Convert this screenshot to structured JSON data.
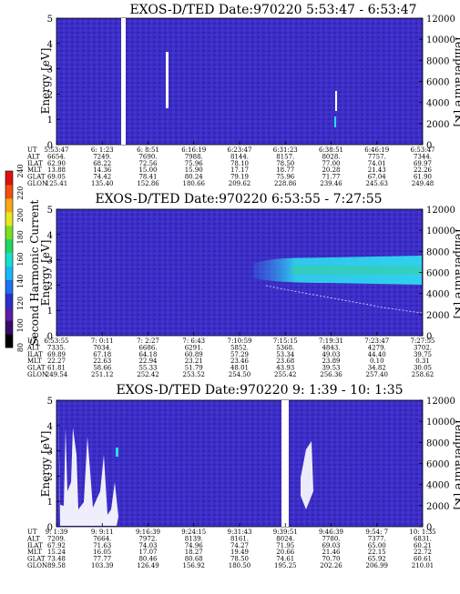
{
  "colors": {
    "background": "#3a2fc8",
    "band_cyan": "#2fd8f0",
    "band_green": "#3ad08a",
    "band_blue": "#2f8ff0",
    "white_gap": "#ffffff",
    "trace": "#c8c0ff"
  },
  "colorbar": {
    "label": "Second Harmonic Current",
    "ticks": [
      "240",
      "220",
      "200",
      "180",
      "160",
      "140",
      "120",
      "100",
      "80"
    ],
    "colors": [
      "#000000",
      "#3a0a6a",
      "#5a1fa8",
      "#2a2fd0",
      "#1f6ff0",
      "#18b8f8",
      "#18e0d0",
      "#20d860",
      "#7ae020",
      "#e8e820",
      "#f8a818",
      "#f05010",
      "#e01010"
    ]
  },
  "chart_data": [
    {
      "type": "heatmap",
      "title": "EXOS-D/TED   Date:970220   5:53:47 - 6:53:47",
      "ylabel": "Energy [eV]",
      "y2label": "Temperature [K]",
      "ylim": [
        0,
        5
      ],
      "y2lim": [
        0,
        12000
      ],
      "yticks": [
        "0",
        "1",
        "2",
        "3",
        "4",
        "5"
      ],
      "y2ticks": [
        "0",
        "2000",
        "4000",
        "6000",
        "8000",
        "10000",
        "12000"
      ],
      "table": {
        "row_labels": [
          "UT",
          "ALT",
          "ILAT",
          "MLT",
          "GLAT",
          "GLON"
        ],
        "columns": [
          [
            "5:53:47",
            "6654.",
            "62.90",
            "13.88",
            "69.05",
            "125.41"
          ],
          [
            "6: 1:23",
            "7249.",
            "68.22",
            "14.36",
            "74.42",
            "135.40"
          ],
          [
            "6: 8:51",
            "7690.",
            "72.56",
            "15.00",
            "78.41",
            "152.86"
          ],
          [
            "6:16:19",
            "7988.",
            "75.96",
            "15.90",
            "80.24",
            "180.66"
          ],
          [
            "6:23:47",
            "8144.",
            "78.10",
            "17.17",
            "79.19",
            "209.62"
          ],
          [
            "6:31:23",
            "8157.",
            "78.50",
            "18.77",
            "75.96",
            "228.86"
          ],
          [
            "6:38:51",
            "8028.",
            "77.00",
            "20.28",
            "71.77",
            "239.46"
          ],
          [
            "6:46:19",
            "7757.",
            "74.01",
            "21.43",
            "67.04",
            "245.63"
          ],
          [
            "6:53:47",
            "7344.",
            "69.97",
            "22.26",
            "61.90",
            "249.48"
          ]
        ]
      }
    },
    {
      "type": "heatmap",
      "title": "EXOS-D/TED   Date:970220   6:53:55 - 7:27:55",
      "ylabel": "Energy [eV]",
      "y2label": "Temperature [K]",
      "ylim": [
        0,
        5
      ],
      "y2lim": [
        0,
        12000
      ],
      "yticks": [
        "0",
        "1",
        "2",
        "3",
        "4",
        "5"
      ],
      "y2ticks": [
        "0",
        "2000",
        "4000",
        "6000",
        "8000",
        "10000",
        "12000"
      ],
      "table": {
        "row_labels": [
          "UT",
          "ALT",
          "ILAT",
          "MLT",
          "GLAT",
          "GLON"
        ],
        "columns": [
          [
            "6:53:55",
            "7335.",
            "69.89",
            "22.27",
            "61.81",
            "249.54"
          ],
          [
            "7: 0:11",
            "7034.",
            "67.18",
            "22.63",
            "58.66",
            "251.12"
          ],
          [
            "7: 2:27",
            "6686.",
            "64.18",
            "22.94",
            "55.33",
            "252.42"
          ],
          [
            "7: 6:43",
            "6291.",
            "60.89",
            "23.21",
            "51.79",
            "253.52"
          ],
          [
            "7:10:59",
            "5852.",
            "57.29",
            "23.46",
            "48.01",
            "254.50"
          ],
          [
            "7:15:15",
            "5368.",
            "53.34",
            "23.68",
            "43.93",
            "255.42"
          ],
          [
            "7:19:31",
            "4843.",
            "49.03",
            "23.89",
            "39.53",
            "256.36"
          ],
          [
            "7:23:47",
            "4279.",
            "44.40",
            "0.10",
            "34.82",
            "257.40"
          ],
          [
            "7:27:55",
            "3702.",
            "39.75",
            "0.31",
            "30.05",
            "258.62"
          ]
        ]
      }
    },
    {
      "type": "heatmap",
      "title": "EXOS-D/TED   Date:970220   9: 1:39 - 10: 1:35",
      "ylabel": "Energy [eV]",
      "y2label": "Temperature [K]",
      "ylim": [
        0,
        5
      ],
      "y2lim": [
        0,
        12000
      ],
      "yticks": [
        "0",
        "1",
        "2",
        "3",
        "4",
        "5"
      ],
      "y2ticks": [
        "0",
        "2000",
        "4000",
        "6000",
        "8000",
        "10000",
        "12000"
      ],
      "table": {
        "row_labels": [
          "UT",
          "ALT",
          "ILAT",
          "MLT",
          "GLAT",
          "GLON"
        ],
        "columns": [
          [
            "9: 1:39",
            "7209.",
            "67.92",
            "15.24",
            "73.48",
            "89.58"
          ],
          [
            "9: 9:11",
            "7664.",
            "71.63",
            "16.05",
            "77.77",
            "103.39"
          ],
          [
            "9:16:39",
            "7972.",
            "74.03",
            "17.07",
            "80.46",
            "126.49"
          ],
          [
            "9:24:15",
            "8139.",
            "74.96",
            "18.27",
            "80.68",
            "156.92"
          ],
          [
            "9:31:43",
            "8161.",
            "74.27",
            "19.49",
            "78.50",
            "180.50"
          ],
          [
            "9:39:51",
            "8024.",
            "71.95",
            "20.66",
            "74.61",
            "195.25"
          ],
          [
            "9:46:39",
            "7780.",
            "69.03",
            "21.46",
            "70.70",
            "202.26"
          ],
          [
            "9:54: 7",
            "7377.",
            "65.00",
            "22.15",
            "65.92",
            "206.99"
          ],
          [
            "10: 1:35",
            "6831.",
            "60.21",
            "22.72",
            "60.61",
            "210.01"
          ]
        ]
      }
    }
  ]
}
